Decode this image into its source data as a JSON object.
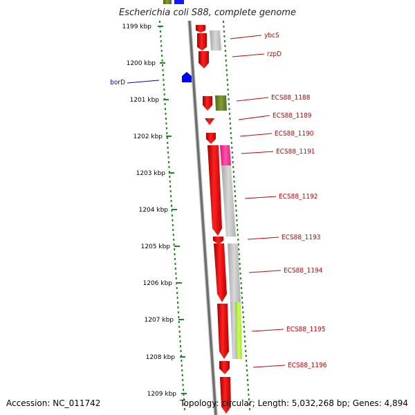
{
  "title": "Escherichia coli S88, complete genome",
  "ruler": [
    "1199 kbp",
    "1200 kbp",
    "1201 kbp",
    "1202 kbp",
    "1203 kbp",
    "1204 kbp",
    "1205 kbp",
    "1206 kbp",
    "1207 kbp",
    "1208 kbp",
    "1209 kbp"
  ],
  "genes": {
    "borD": "borD",
    "ybcS": "ybcS",
    "rzpD": "rzpD",
    "g1188": "ECS88_1188",
    "g1189": "ECS88_1189",
    "g1190": "ECS88_1190",
    "g1191": "ECS88_1191",
    "g1192": "ECS88_1192",
    "g1193": "ECS88_1193",
    "g1194": "ECS88_1194",
    "g1195": "ECS88_1195",
    "g1196": "ECS88_1196"
  },
  "footer": {
    "accession": "Accession: NC_011742",
    "stats": "Topology: circular; Length: 5,032,268 bp; Genes: 4,894"
  },
  "colors": {
    "gene_red": "#ff0000",
    "gene_blue": "#0000ff",
    "label_red": "#cc0000",
    "label_blue": "#0000cc",
    "ruler_green": "#1a8a1a",
    "backbone": "#777777",
    "cog_gray": "#c0c0c0",
    "cog_olive": "#6b8e23",
    "cog_pink": "#ff3399",
    "cog_lime": "#adff2f"
  }
}
